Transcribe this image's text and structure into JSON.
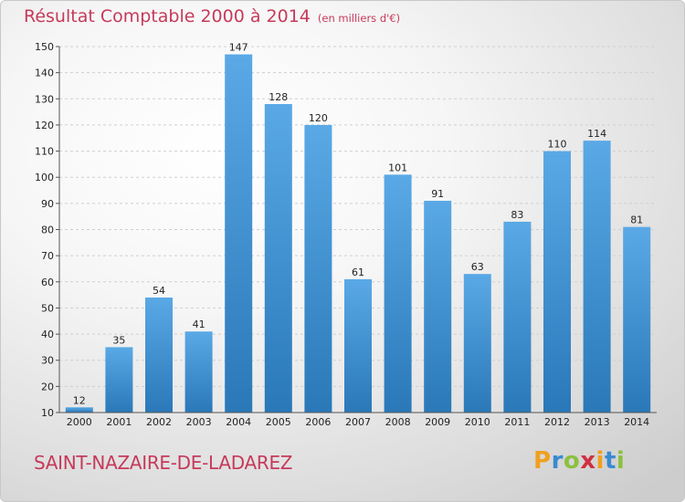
{
  "header": {
    "title": "Résultat Comptable 2000 à 2014",
    "subtitle": "(en milliers d'€)"
  },
  "place_name": "SAINT-NAZAIRE-DE-LADAREZ",
  "logo": {
    "text": "Proxiti",
    "letters": [
      {
        "char": "P",
        "color": "#f0a020"
      },
      {
        "char": "r",
        "color": "#3a8ad0"
      },
      {
        "char": "o",
        "color": "#8cc040"
      },
      {
        "char": "x",
        "color": "#d03040"
      },
      {
        "char": "i",
        "color": "#f0a020"
      },
      {
        "char": "t",
        "color": "#3a8ad0"
      },
      {
        "char": "i",
        "color": "#8cc040"
      }
    ]
  },
  "colors": {
    "title": "#c63a5a",
    "bar_top": "#5aa9e6",
    "bar_bottom": "#2a78b8"
  },
  "chart_data": {
    "type": "bar",
    "title": "Résultat Comptable 2000 à 2014",
    "subtitle": "(en milliers d'€)",
    "xlabel": "",
    "ylabel": "",
    "categories": [
      "2000",
      "2001",
      "2002",
      "2003",
      "2004",
      "2005",
      "2006",
      "2007",
      "2008",
      "2009",
      "2010",
      "2011",
      "2012",
      "2013",
      "2014"
    ],
    "values": [
      12,
      35,
      54,
      41,
      147,
      128,
      120,
      61,
      101,
      91,
      63,
      83,
      110,
      114,
      81
    ],
    "ylim": [
      10,
      150
    ],
    "yticks": [
      10,
      20,
      30,
      40,
      50,
      60,
      70,
      80,
      90,
      100,
      110,
      120,
      130,
      140,
      150
    ],
    "grid": true,
    "legend": "none"
  }
}
